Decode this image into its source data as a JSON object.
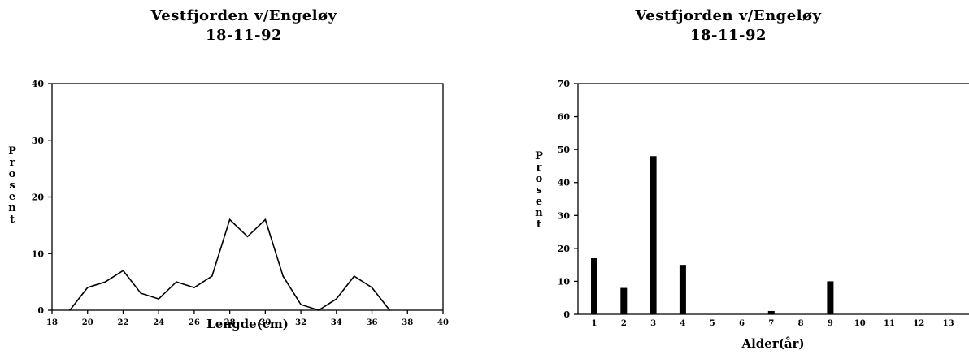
{
  "charts": [
    {
      "title_line1": "Vestfjorden v/Engeløy",
      "title_line2": "18-11-92"
    },
    {
      "title_line1": "Vestfjorden v/Engeløy",
      "title_line2": "18-11-92"
    }
  ],
  "chart_data": [
    {
      "type": "line",
      "title": "Vestfjorden v/Engeløy 18-11-92",
      "xlabel": "Lengde(cm)",
      "ylabel": "Prosent",
      "xlim": [
        18,
        40
      ],
      "ylim": [
        0,
        40
      ],
      "x_ticks": [
        18,
        20,
        22,
        24,
        26,
        28,
        30,
        32,
        34,
        36,
        38,
        40
      ],
      "y_ticks": [
        0,
        10,
        20,
        30,
        40
      ],
      "grid": false,
      "x": [
        19,
        20,
        21,
        22,
        23,
        24,
        25,
        26,
        27,
        28,
        29,
        30,
        31,
        32,
        33,
        34,
        35,
        36,
        37
      ],
      "y": [
        0,
        4,
        5,
        7,
        3,
        2,
        5,
        4,
        6,
        16,
        13,
        16,
        6,
        1,
        0,
        2,
        6,
        4,
        0
      ]
    },
    {
      "type": "bar",
      "title": "Vestfjorden v/Engeløy 18-11-92",
      "xlabel": "Alder(år)",
      "ylabel": "Prosent",
      "ylim": [
        0,
        70
      ],
      "y_ticks": [
        0,
        10,
        20,
        30,
        40,
        50,
        60,
        70
      ],
      "grid": false,
      "categories": [
        "1",
        "2",
        "3",
        "4",
        "5",
        "6",
        "7",
        "8",
        "9",
        "10",
        "11",
        "12",
        "13"
      ],
      "values": [
        17,
        8,
        48,
        15,
        0,
        0,
        1,
        0,
        10,
        0,
        0,
        0,
        0
      ]
    }
  ]
}
